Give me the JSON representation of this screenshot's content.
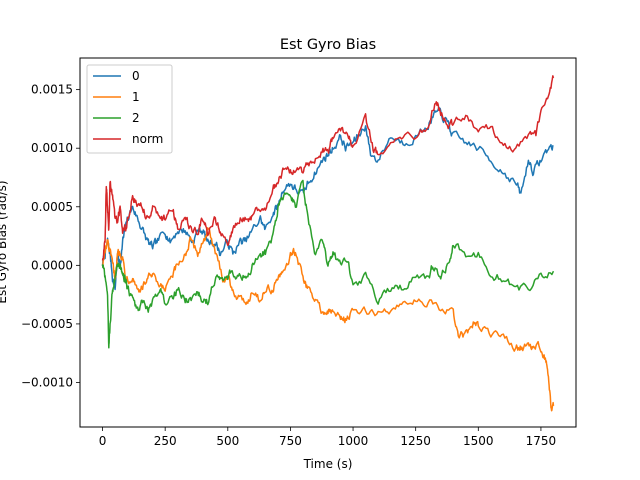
{
  "chart_data": {
    "type": "line",
    "title": "Est Gyro Bias",
    "xlabel": "Time (s)",
    "ylabel": "Est Gyro Bias (rad/s)",
    "xlim": [
      -90,
      1890
    ],
    "ylim": [
      -0.00138,
      0.00177
    ],
    "xticks": [
      0,
      250,
      500,
      750,
      1000,
      1250,
      1500,
      1750
    ],
    "xtick_labels": [
      "0",
      "250",
      "500",
      "750",
      "1000",
      "1250",
      "1500",
      "1750"
    ],
    "yticks": [
      -0.001,
      -0.0005,
      0.0,
      0.0005,
      0.001,
      0.0015
    ],
    "ytick_labels": [
      "−0.0010",
      "−0.0005",
      "0.0000",
      "0.0005",
      "0.0010",
      "0.0015"
    ],
    "grid": false,
    "legend_position": "top-left",
    "series": [
      {
        "name": "0",
        "color": "#1f77b4",
        "x": [
          0,
          10,
          20,
          30,
          40,
          50,
          60,
          70,
          80,
          90,
          100,
          120,
          140,
          160,
          180,
          200,
          220,
          250,
          270,
          300,
          330,
          360,
          380,
          400,
          420,
          450,
          470,
          500,
          520,
          550,
          570,
          600,
          630,
          650,
          680,
          700,
          720,
          750,
          770,
          800,
          820,
          850,
          880,
          900,
          920,
          950,
          970,
          1000,
          1020,
          1050,
          1070,
          1100,
          1150,
          1200,
          1250,
          1300,
          1330,
          1350,
          1380,
          1400,
          1450,
          1500,
          1550,
          1600,
          1650,
          1670,
          1700,
          1720,
          1750,
          1780,
          1800
        ],
        "y": [
          1e-05,
          0.0001,
          0.0002,
          0.0001,
          -0.0001,
          -0.0002,
          0.0001,
          0.0,
          0.0002,
          0.0003,
          0.0004,
          0.0005,
          0.0004,
          0.0003,
          0.0002,
          0.00015,
          0.0002,
          0.0003,
          0.0002,
          0.0003,
          0.0003,
          0.0002,
          0.0003,
          0.0003,
          0.0002,
          0.0002,
          0.0001,
          0.0002,
          0.0001,
          0.0002,
          0.0002,
          0.0003,
          0.0004,
          0.0003,
          0.00045,
          0.0005,
          0.00065,
          0.0007,
          0.00065,
          0.0006,
          0.0007,
          0.0008,
          0.0009,
          0.00095,
          0.001,
          0.0011,
          0.001,
          0.00105,
          0.0011,
          0.0012,
          0.00095,
          0.0009,
          0.0011,
          0.00105,
          0.0011,
          0.0012,
          0.0013,
          0.0013,
          0.0012,
          0.0011,
          0.00105,
          0.001,
          0.0009,
          0.0008,
          0.0007,
          0.0006,
          0.0009,
          0.0008,
          0.0009,
          0.001,
          0.00102
        ]
      },
      {
        "name": "1",
        "color": "#ff7f0e",
        "x": [
          0,
          10,
          20,
          30,
          40,
          50,
          60,
          70,
          80,
          90,
          100,
          120,
          140,
          160,
          180,
          200,
          230,
          250,
          280,
          300,
          330,
          350,
          380,
          400,
          420,
          450,
          480,
          500,
          520,
          550,
          580,
          600,
          630,
          650,
          680,
          700,
          720,
          750,
          770,
          800,
          820,
          850,
          880,
          900,
          920,
          950,
          970,
          1000,
          1050,
          1100,
          1150,
          1200,
          1250,
          1300,
          1350,
          1400,
          1420,
          1450,
          1480,
          1500,
          1550,
          1600,
          1650,
          1670,
          1700,
          1720,
          1750,
          1770,
          1780,
          1790,
          1800
        ],
        "y": [
          2e-05,
          0.0001,
          0.0002,
          0.0001,
          0.0,
          -0.0001,
          0.0001,
          0.0001,
          0.0001,
          -0.0001,
          -0.0001,
          -0.0001,
          -0.0002,
          -0.0002,
          -0.0001,
          -0.0001,
          -0.0002,
          -0.0002,
          -0.0001,
          0.0,
          0.0001,
          0.0002,
          0.0001,
          0.0002,
          0.0003,
          0.0001,
          -0.0001,
          -0.0001,
          -0.0002,
          -0.0003,
          -0.0003,
          -0.0002,
          -0.0003,
          -0.0002,
          -0.0002,
          -0.0001,
          -0.0001,
          0.0001,
          0.0001,
          -0.0001,
          -0.0002,
          -0.0003,
          -0.0004,
          -0.0004,
          -0.0004,
          -0.00045,
          -0.00045,
          -0.0004,
          -0.0004,
          -0.0004,
          -0.0004,
          -0.0003,
          -0.0003,
          -0.0003,
          -0.0004,
          -0.0004,
          -0.0006,
          -0.0006,
          -0.0005,
          -0.0005,
          -0.0006,
          -0.0006,
          -0.0007,
          -0.0007,
          -0.0007,
          -0.0007,
          -0.0007,
          -0.0008,
          -0.001,
          -0.0012,
          -0.0012
        ]
      },
      {
        "name": "2",
        "color": "#2ca02c",
        "x": [
          0,
          10,
          20,
          25,
          30,
          40,
          50,
          60,
          70,
          80,
          90,
          100,
          120,
          140,
          160,
          180,
          200,
          230,
          250,
          280,
          300,
          330,
          350,
          380,
          400,
          420,
          450,
          470,
          500,
          520,
          550,
          580,
          600,
          630,
          650,
          680,
          700,
          720,
          750,
          770,
          800,
          820,
          850,
          880,
          900,
          920,
          950,
          980,
          1000,
          1050,
          1100,
          1150,
          1200,
          1250,
          1300,
          1320,
          1350,
          1380,
          1400,
          1450,
          1500,
          1550,
          1600,
          1650,
          1700,
          1750,
          1800
        ],
        "y": [
          2e-05,
          -0.0001,
          -0.0003,
          -0.0007,
          -0.0005,
          -0.0002,
          -0.0001,
          0.0,
          0.0,
          -0.0001,
          -0.0001,
          -0.0002,
          -0.0003,
          -0.0004,
          -0.0003,
          -0.0004,
          -0.0003,
          -0.0002,
          -0.0003,
          -0.0003,
          -0.0002,
          -0.0003,
          -0.0003,
          -0.0002,
          -0.0003,
          -0.0003,
          -0.0001,
          -0.0001,
          -0.0001,
          -5e-05,
          -0.0001,
          -0.0001,
          0.0,
          0.0001,
          0.0001,
          0.00025,
          0.0005,
          0.0006,
          0.0006,
          0.0005,
          0.0007,
          0.0004,
          0.0001,
          0.0002,
          0.0,
          0.0001,
          0.0,
          5e-05,
          -0.0002,
          -0.0001,
          -0.0003,
          -0.0002,
          -0.0002,
          -0.0001,
          -0.0001,
          0.0,
          -0.0001,
          0.0,
          0.0002,
          0.0001,
          0.0001,
          -0.0001,
          -0.0001,
          -0.0002,
          -0.0002,
          -0.0001,
          -5e-05
        ]
      },
      {
        "name": "norm",
        "color": "#d62728",
        "x": [
          0,
          10,
          15,
          20,
          25,
          30,
          40,
          50,
          60,
          70,
          80,
          90,
          100,
          120,
          140,
          160,
          180,
          200,
          230,
          250,
          280,
          300,
          330,
          350,
          380,
          400,
          420,
          450,
          470,
          500,
          520,
          550,
          580,
          600,
          630,
          650,
          680,
          700,
          720,
          750,
          770,
          800,
          820,
          850,
          880,
          900,
          920,
          950,
          980,
          1000,
          1050,
          1080,
          1100,
          1150,
          1200,
          1250,
          1300,
          1330,
          1350,
          1380,
          1400,
          1450,
          1500,
          1550,
          1600,
          1650,
          1700,
          1730,
          1750,
          1780,
          1800
        ],
        "y": [
          5e-05,
          0.0002,
          0.0007,
          0.0005,
          0.0003,
          0.0007,
          0.0006,
          0.0004,
          0.0004,
          0.0005,
          0.0003,
          0.0003,
          0.0004,
          0.0006,
          0.0005,
          0.0005,
          0.0004,
          0.0005,
          0.0004,
          0.0004,
          0.0005,
          0.0003,
          0.0004,
          0.0003,
          0.0003,
          0.0004,
          0.0003,
          0.0004,
          0.0003,
          0.0002,
          0.0003,
          0.0004,
          0.0004,
          0.0004,
          0.0005,
          0.0005,
          0.00065,
          0.0007,
          0.0008,
          0.0008,
          0.00085,
          0.0008,
          0.00085,
          0.0009,
          0.001,
          0.00095,
          0.0011,
          0.00115,
          0.0011,
          0.001,
          0.00125,
          0.001,
          0.00095,
          0.001,
          0.0011,
          0.0011,
          0.0012,
          0.0014,
          0.0013,
          0.0012,
          0.0012,
          0.0013,
          0.0011,
          0.0012,
          0.001,
          0.001,
          0.0011,
          0.0011,
          0.0013,
          0.0014,
          0.0016
        ]
      }
    ]
  }
}
